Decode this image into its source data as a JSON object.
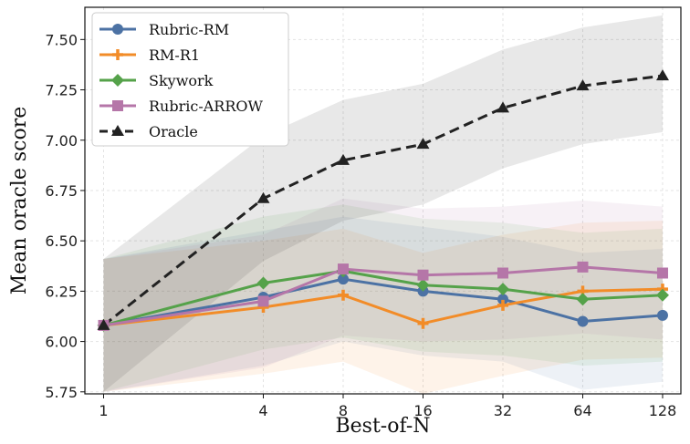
{
  "chart_data": {
    "type": "line",
    "xlabel": "Best-of-N",
    "ylabel": "Mean oracle score",
    "x": [
      1,
      4,
      8,
      16,
      32,
      64,
      128
    ],
    "x_scale": "log2",
    "xlim": [
      0.85,
      150
    ],
    "ylim": [
      5.74,
      7.66
    ],
    "y_ticks": [
      5.75,
      6.0,
      6.25,
      6.5,
      6.75,
      7.0,
      7.25,
      7.5
    ],
    "y_tick_labels": [
      "5.75",
      "6.00",
      "6.25",
      "6.50",
      "6.75",
      "7.00",
      "7.25",
      "7.50"
    ],
    "x_tick_labels": [
      "1",
      "4",
      "8",
      "16",
      "32",
      "64",
      "128"
    ],
    "grid": true,
    "legend_position": "top-left",
    "series": [
      {
        "name": "Rubric-RM",
        "color": "#4c72a4",
        "marker": "circle",
        "dash": "solid",
        "values": [
          6.08,
          6.22,
          6.31,
          6.25,
          6.21,
          6.1,
          6.13
        ],
        "lower": [
          5.75,
          5.88,
          6.0,
          5.93,
          5.9,
          5.76,
          5.8
        ],
        "upper": [
          6.41,
          6.55,
          6.62,
          6.57,
          6.52,
          6.44,
          6.46
        ]
      },
      {
        "name": "RM-R1",
        "color": "#f28c28",
        "marker": "plus",
        "dash": "solid",
        "values": [
          6.08,
          6.17,
          6.23,
          6.09,
          6.18,
          6.25,
          6.26
        ],
        "lower": [
          5.75,
          5.84,
          5.9,
          5.74,
          5.83,
          5.91,
          5.92
        ],
        "upper": [
          6.41,
          6.5,
          6.56,
          6.44,
          6.53,
          6.59,
          6.6
        ]
      },
      {
        "name": "Skywork",
        "color": "#55a24a",
        "marker": "diamond",
        "dash": "solid",
        "values": [
          6.08,
          6.29,
          6.35,
          6.28,
          6.26,
          6.21,
          6.23
        ],
        "lower": [
          5.75,
          5.96,
          6.02,
          5.95,
          5.93,
          5.88,
          5.9
        ],
        "upper": [
          6.41,
          6.62,
          6.68,
          6.61,
          6.59,
          6.54,
          6.56
        ]
      },
      {
        "name": "Rubric-ARROW",
        "color": "#b576a8",
        "marker": "square",
        "dash": "solid",
        "values": [
          6.08,
          6.2,
          6.36,
          6.33,
          6.34,
          6.37,
          6.34
        ],
        "lower": [
          5.75,
          5.87,
          6.03,
          6.0,
          6.01,
          6.04,
          6.01
        ],
        "upper": [
          6.41,
          6.53,
          6.71,
          6.66,
          6.67,
          6.7,
          6.67
        ]
      },
      {
        "name": "Oracle",
        "color": "#222222",
        "marker": "triangle",
        "dash": "dashed",
        "values": [
          6.08,
          6.71,
          6.9,
          6.98,
          7.16,
          7.27,
          7.32
        ],
        "lower": [
          5.75,
          6.4,
          6.6,
          6.68,
          6.86,
          6.98,
          7.04
        ],
        "upper": [
          6.41,
          7.02,
          7.2,
          7.28,
          7.45,
          7.56,
          7.62
        ]
      }
    ]
  }
}
